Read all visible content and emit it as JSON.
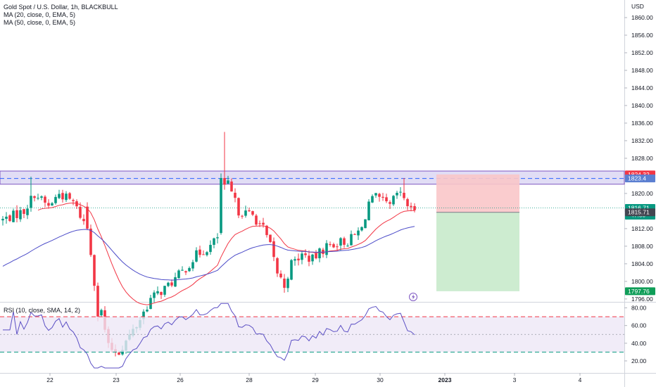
{
  "legend": {
    "title": "Gold Spot / U.S. Dollar, 1h, BLACKBULL",
    "ma20": "MA (20, close, 0, EMA, 5)",
    "ma50": "MA (50, close, 0, EMA, 5)",
    "rsi": "RSI (10, close, SMA, 14, 2)"
  },
  "currency": "USD",
  "colors": {
    "up": "#089981",
    "down": "#f23645",
    "ma20": "#f23645",
    "ma50": "#4b4bc8",
    "rsi_line": "#5b4fc4",
    "zone_fill": "#e1ddf5",
    "zone_border": "#7e57c2",
    "stop_fill": "#f9c6c9",
    "target_fill": "#c8eacb"
  },
  "price_tags": {
    "stop": "1824.32",
    "current": "1816.71",
    "countdown": "47:50",
    "entry": "1815.71",
    "target": "1797.76"
  },
  "chart_data": {
    "type": "candlestick",
    "y_ticks": [
      1796,
      1800,
      1804,
      1808,
      1812,
      1816,
      1820,
      1824,
      1828,
      1832,
      1836,
      1840,
      1844,
      1848,
      1852,
      1856,
      1860
    ],
    "y_tick_labels": [
      "1796.00",
      "1800.00",
      "1804.00",
      "1808.00",
      "1812.00",
      "1816.00",
      "1820.00",
      "1824.00",
      "1828.00",
      "1832.00",
      "1836.00",
      "1840.00",
      "1844.00",
      "1848.00",
      "1852.00",
      "1856.00",
      "1860.00"
    ],
    "ylim": [
      1795.5,
      1864
    ],
    "x_labels": [
      "22",
      "23",
      "26",
      "28",
      "29",
      "30",
      "2023",
      "3",
      "4"
    ],
    "resistance_zone": [
      1822.1,
      1825.1
    ],
    "resistance_line": 1823.4,
    "position": {
      "stop": 1824.32,
      "entry": 1815.71,
      "target": 1797.76
    },
    "rsi": {
      "y_ticks": [
        20,
        40,
        60,
        80
      ],
      "y_tick_labels": [
        "20.00",
        "40.00",
        "60.00",
        "80.00"
      ],
      "ylim": [
        8,
        86
      ],
      "upper": 70,
      "middle": 50,
      "lower": 30
    }
  }
}
